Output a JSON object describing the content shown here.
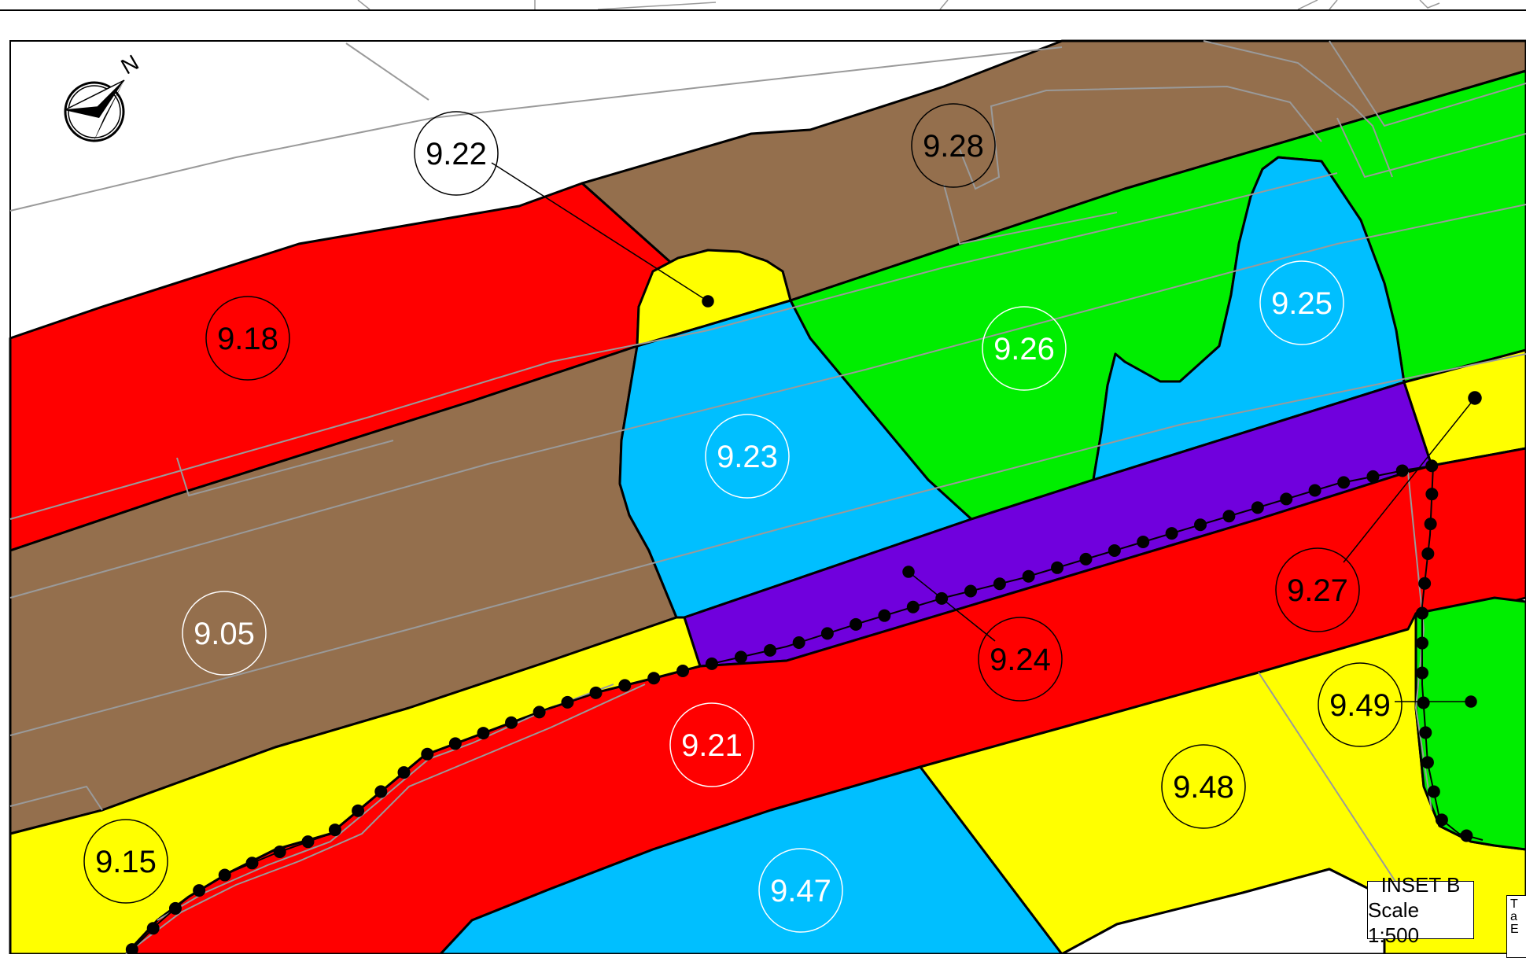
{
  "map": {
    "inset_title": "INSET B",
    "inset_scale": "Scale 1:500",
    "note_lines": [
      "T",
      "a",
      "E"
    ],
    "north_symbol": "north-arrow-icon",
    "north_letter": "N",
    "colors": {
      "brown": "#946f4d",
      "red": "#ff0000",
      "yellow": "#ffff00",
      "cyan": "#00bfff",
      "green": "#00ee00",
      "purple": "#7000dd",
      "white": "#ffffff"
    },
    "plots": [
      {
        "id": "9.22",
        "text_color": "#000000"
      },
      {
        "id": "9.28",
        "text_color": "#000000"
      },
      {
        "id": "9.18",
        "text_color": "#000000"
      },
      {
        "id": "9.26",
        "text_color": "#ffffff"
      },
      {
        "id": "9.25",
        "text_color": "#ffffff"
      },
      {
        "id": "9.23",
        "text_color": "#ffffff"
      },
      {
        "id": "9.05",
        "text_color": "#ffffff"
      },
      {
        "id": "9.27",
        "text_color": "#000000"
      },
      {
        "id": "9.24",
        "text_color": "#000000"
      },
      {
        "id": "9.49",
        "text_color": "#000000"
      },
      {
        "id": "9.21",
        "text_color": "#ffffff"
      },
      {
        "id": "9.48",
        "text_color": "#000000"
      },
      {
        "id": "9.15",
        "text_color": "#000000"
      },
      {
        "id": "9.47",
        "text_color": "#ffffff"
      }
    ]
  }
}
